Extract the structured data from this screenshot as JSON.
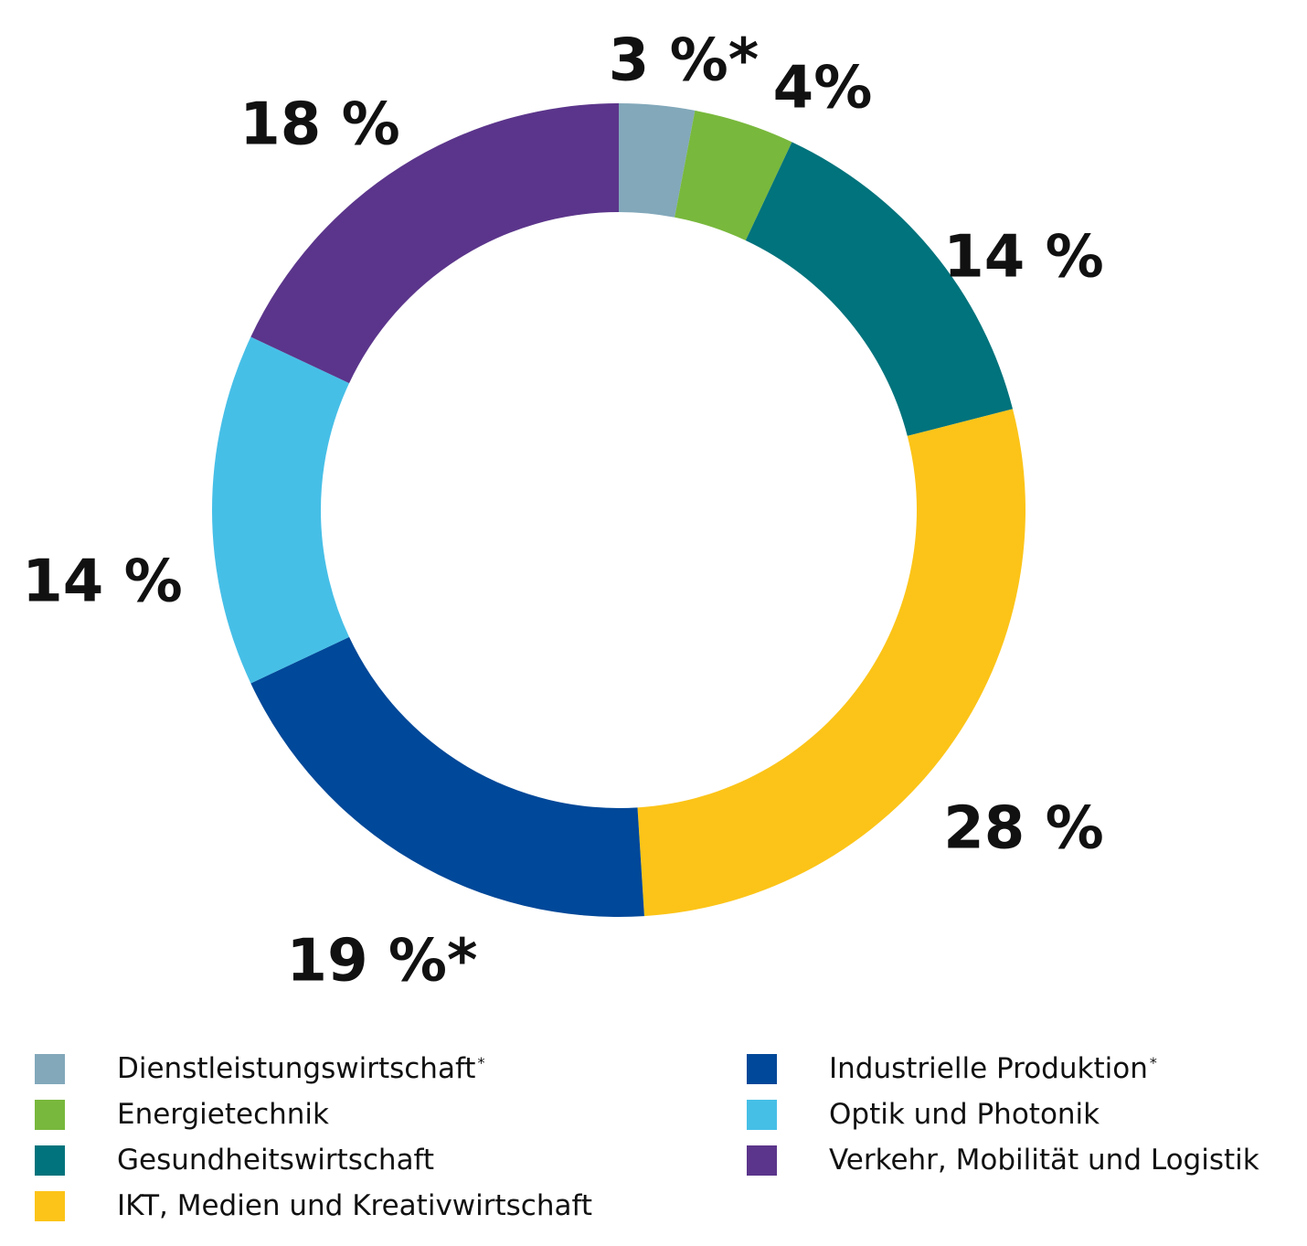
{
  "chart_data": {
    "type": "pie",
    "variant": "donut",
    "title": "",
    "legend_position": "bottom",
    "slices": [
      {
        "name": "Dienstleistungswirtschaft",
        "footnote": "*",
        "value": 3,
        "label": "3 %*",
        "color": "#82A8BA"
      },
      {
        "name": "Energietechnik",
        "footnote": "",
        "value": 4,
        "label": "4%",
        "color": "#78B83C"
      },
      {
        "name": "Gesundheitswirtschaft",
        "footnote": "",
        "value": 14,
        "label": "14 %",
        "color": "#00737C"
      },
      {
        "name": "IKT, Medien und Kreativwirtschaft",
        "footnote": "",
        "value": 28,
        "label": "28 %",
        "color": "#FCC418"
      },
      {
        "name": "Industrielle Produktion",
        "footnote": "*",
        "value": 19,
        "label": "19 %*",
        "color": "#004899"
      },
      {
        "name": "Optik und Photonik",
        "footnote": "",
        "value": 14,
        "label": "14 %",
        "color": "#46BFE7"
      },
      {
        "name": "Verkehr, Mobilität und Logistik",
        "footnote": "",
        "value": 18,
        "label": "18 %",
        "color": "#5B358B"
      }
    ]
  }
}
